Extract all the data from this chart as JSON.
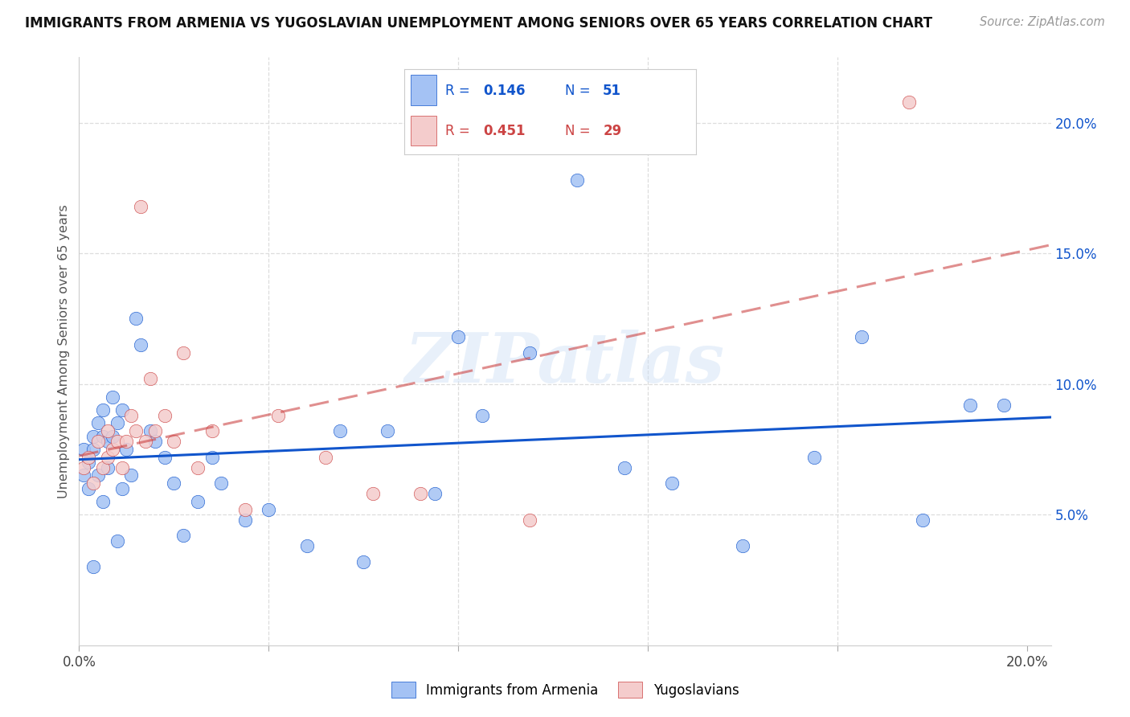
{
  "title": "IMMIGRANTS FROM ARMENIA VS YUGOSLAVIAN UNEMPLOYMENT AMONG SENIORS OVER 65 YEARS CORRELATION CHART",
  "source": "Source: ZipAtlas.com",
  "ylabel": "Unemployment Among Seniors over 65 years",
  "watermark": "ZIPatlas",
  "armenia_color": "#a4c2f4",
  "yugoslavia_color": "#f4cccc",
  "armenia_line_color": "#1155cc",
  "yugoslavia_line_color": "#cc4444",
  "yug_line_style": "dashed",
  "right_tick_color": "#1155cc",
  "armenia_r": "0.146",
  "armenia_n": "51",
  "yugoslavia_r": "0.451",
  "yugoslavia_n": "29",
  "xlim": [
    0.0,
    0.205
  ],
  "ylim": [
    0.0,
    0.225
  ],
  "xtick_vals": [
    0.0,
    0.04,
    0.08,
    0.12,
    0.16,
    0.2
  ],
  "xtick_labels": [
    "0.0%",
    "",
    "",
    "",
    "",
    "20.0%"
  ],
  "ytick_vals": [
    0.05,
    0.1,
    0.15,
    0.2
  ],
  "ytick_labels": [
    "5.0%",
    "10.0%",
    "15.0%",
    "20.0%"
  ],
  "armenia_x": [
    0.001,
    0.001,
    0.002,
    0.002,
    0.003,
    0.003,
    0.003,
    0.004,
    0.004,
    0.005,
    0.005,
    0.005,
    0.006,
    0.006,
    0.007,
    0.007,
    0.008,
    0.008,
    0.009,
    0.009,
    0.01,
    0.011,
    0.012,
    0.013,
    0.015,
    0.016,
    0.018,
    0.02,
    0.022,
    0.025,
    0.028,
    0.03,
    0.035,
    0.04,
    0.048,
    0.055,
    0.06,
    0.065,
    0.075,
    0.08,
    0.085,
    0.095,
    0.105,
    0.115,
    0.125,
    0.14,
    0.155,
    0.165,
    0.178,
    0.188,
    0.195
  ],
  "armenia_y": [
    0.075,
    0.065,
    0.07,
    0.06,
    0.08,
    0.075,
    0.03,
    0.085,
    0.065,
    0.09,
    0.08,
    0.055,
    0.078,
    0.068,
    0.095,
    0.08,
    0.085,
    0.04,
    0.09,
    0.06,
    0.075,
    0.065,
    0.125,
    0.115,
    0.082,
    0.078,
    0.072,
    0.062,
    0.042,
    0.055,
    0.072,
    0.062,
    0.048,
    0.052,
    0.038,
    0.082,
    0.032,
    0.082,
    0.058,
    0.118,
    0.088,
    0.112,
    0.178,
    0.068,
    0.062,
    0.038,
    0.072,
    0.118,
    0.048,
    0.092,
    0.092
  ],
  "yugoslavia_x": [
    0.001,
    0.002,
    0.003,
    0.004,
    0.005,
    0.006,
    0.006,
    0.007,
    0.008,
    0.009,
    0.01,
    0.011,
    0.012,
    0.013,
    0.014,
    0.015,
    0.016,
    0.018,
    0.02,
    0.022,
    0.025,
    0.028,
    0.035,
    0.042,
    0.052,
    0.062,
    0.072,
    0.095,
    0.175
  ],
  "yugoslavia_y": [
    0.068,
    0.072,
    0.062,
    0.078,
    0.068,
    0.082,
    0.072,
    0.075,
    0.078,
    0.068,
    0.078,
    0.088,
    0.082,
    0.168,
    0.078,
    0.102,
    0.082,
    0.088,
    0.078,
    0.112,
    0.068,
    0.082,
    0.052,
    0.088,
    0.072,
    0.058,
    0.058,
    0.048,
    0.208
  ]
}
